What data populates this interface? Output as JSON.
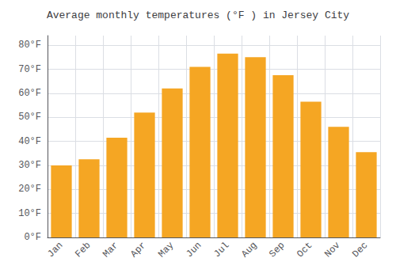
{
  "chart_data": {
    "type": "bar",
    "title": "Average monthly temperatures (°F ) in Jersey City",
    "categories": [
      "Jan",
      "Feb",
      "Mar",
      "Apr",
      "May",
      "Jun",
      "Jul",
      "Aug",
      "Sep",
      "Oct",
      "Nov",
      "Dec"
    ],
    "values": [
      30,
      32.5,
      41.5,
      52,
      62,
      71,
      76.5,
      75,
      67.5,
      56.5,
      46,
      35.5
    ],
    "color": "#F5A623",
    "ylim": [
      0,
      84
    ],
    "yticks": [
      {
        "value": 0,
        "label": "0°F"
      },
      {
        "value": 10,
        "label": "10°F"
      },
      {
        "value": 20,
        "label": "20°F"
      },
      {
        "value": 30,
        "label": "30°F"
      },
      {
        "value": 40,
        "label": "40°F"
      },
      {
        "value": 50,
        "label": "50°F"
      },
      {
        "value": 60,
        "label": "60°F"
      },
      {
        "value": 70,
        "label": "70°F"
      },
      {
        "value": 80,
        "label": "80°F"
      }
    ],
    "grid": true
  }
}
